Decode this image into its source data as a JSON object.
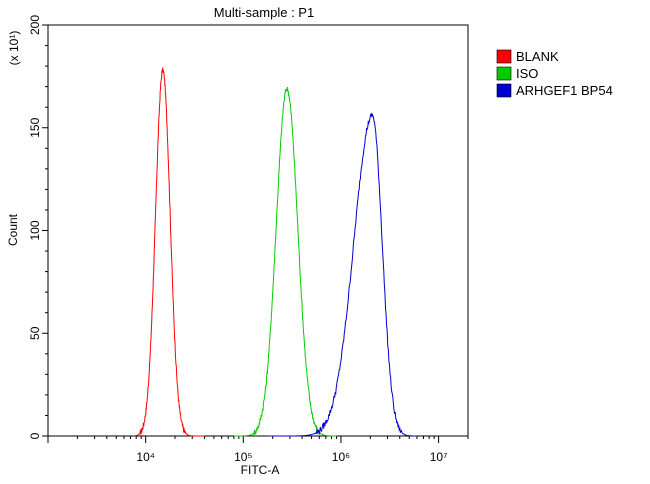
{
  "chart_data": {
    "type": "line",
    "title": "Multi-sample : P1",
    "xlabel": "FITC-A",
    "ylabel": "Count",
    "y_multiplier": "(x 10¹)",
    "x_scale": "log",
    "xlim": [
      1000,
      20000000
    ],
    "ylim": [
      0,
      200
    ],
    "x_ticks": [
      {
        "value": 10000,
        "label": "10⁴"
      },
      {
        "value": 100000,
        "label": "10⁵"
      },
      {
        "value": 1000000,
        "label": "10⁶"
      },
      {
        "value": 10000000,
        "label": "10⁷"
      }
    ],
    "y_ticks": [
      0,
      50,
      100,
      150,
      200
    ],
    "legend_position": "top-right",
    "series": [
      {
        "name": "BLANK",
        "color": "#ff0000",
        "shape": "gaussian",
        "peak_x": 15000,
        "peak_y": 178,
        "sigma_log10": 0.075,
        "x_range": [
          7500,
          40000
        ]
      },
      {
        "name": "ISO",
        "color": "#00cc00",
        "shape": "gaussian",
        "peak_x": 280000,
        "peak_y": 169,
        "sigma_log10": 0.11,
        "x_range": [
          80000,
          900000
        ]
      },
      {
        "name": "ARHGEF1 BP54",
        "color": "#0000cc",
        "shape": "skewed",
        "peak_x": 2100000,
        "peak_y": 156,
        "sigma_left_log10": 0.19,
        "sigma_right_log10": 0.1,
        "x_range": [
          180000,
          6000000
        ]
      }
    ]
  }
}
